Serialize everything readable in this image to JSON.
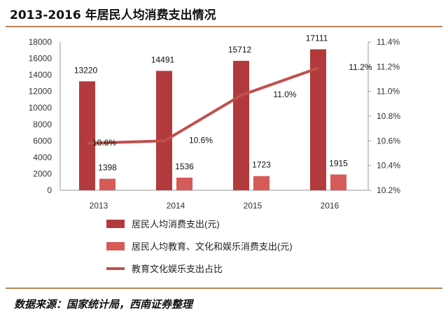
{
  "header": {
    "title": "2013-2016 年居民人均消费支出情况"
  },
  "footer": {
    "source": "数据来源：国家统计局，西南证券整理"
  },
  "colors": {
    "primary_bar": "#b23a3c",
    "secondary_bar": "#d65a58",
    "line": "#c0504d",
    "rule": "#b5875a"
  },
  "chart_data": {
    "type": "bar",
    "title": "2013-2016 年居民人均消费支出情况",
    "categories": [
      "2013",
      "2014",
      "2015",
      "2016"
    ],
    "series": [
      {
        "name": "居民人均消费支出(元)",
        "type": "bar",
        "axis": "left",
        "values": [
          13220,
          14491,
          15712,
          17111
        ],
        "labels": [
          "13220",
          "14491",
          "15712",
          "17111"
        ]
      },
      {
        "name": "居民人均教育、文化和娱乐消费支出(元)",
        "type": "bar",
        "axis": "left",
        "values": [
          1398,
          1536,
          1723,
          1915
        ],
        "labels": [
          "1398",
          "1536",
          "1723",
          "1915"
        ]
      },
      {
        "name": "教育文化娱乐支出占比",
        "type": "line",
        "axis": "right",
        "values": [
          10.58,
          10.6,
          10.97,
          11.19
        ],
        "labels": [
          "10.6%",
          "10.6%",
          "11.0%",
          "11.2%"
        ]
      }
    ],
    "left_axis": {
      "min": 0,
      "max": 18000,
      "ticks": [
        "0",
        "2000",
        "4000",
        "6000",
        "8000",
        "10000",
        "12000",
        "14000",
        "16000",
        "18000"
      ]
    },
    "right_axis": {
      "min": 10.2,
      "max": 11.4,
      "ticks": [
        "10.2%",
        "10.4%",
        "10.6%",
        "10.8%",
        "11.0%",
        "11.2%",
        "11.4%"
      ]
    },
    "legend_position": "bottom",
    "grid": false
  }
}
